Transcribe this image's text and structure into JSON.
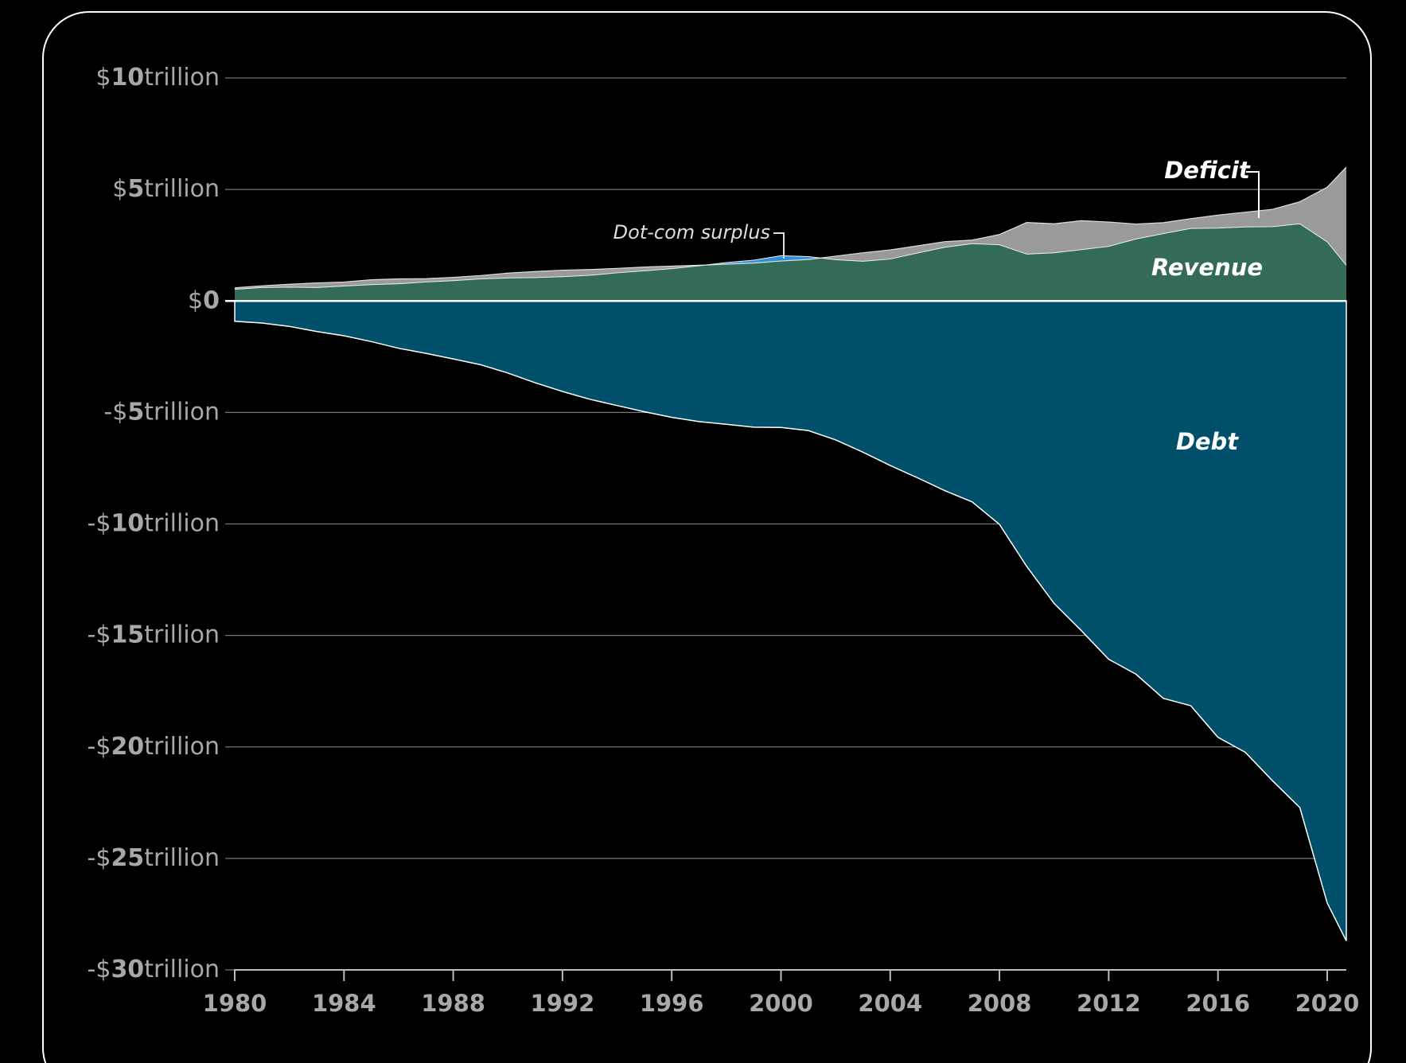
{
  "chart_data": {
    "type": "area",
    "x": [
      1980,
      1981,
      1982,
      1983,
      1984,
      1985,
      1986,
      1987,
      1988,
      1989,
      1990,
      1991,
      1992,
      1993,
      1994,
      1995,
      1996,
      1997,
      1998,
      1999,
      2000,
      2001,
      2002,
      2003,
      2004,
      2005,
      2006,
      2007,
      2008,
      2009,
      2010,
      2011,
      2012,
      2013,
      2014,
      2015,
      2016,
      2017,
      2018,
      2019,
      2020,
      2020.7
    ],
    "series": [
      {
        "name": "Revenue",
        "color": "#336b57",
        "values": [
          0.52,
          0.6,
          0.62,
          0.6,
          0.67,
          0.73,
          0.77,
          0.85,
          0.91,
          0.99,
          1.03,
          1.05,
          1.09,
          1.15,
          1.26,
          1.35,
          1.45,
          1.58,
          1.72,
          1.83,
          2.03,
          1.99,
          1.85,
          1.78,
          1.88,
          2.15,
          2.41,
          2.57,
          2.52,
          2.1,
          2.16,
          2.3,
          2.45,
          2.78,
          3.02,
          3.25,
          3.27,
          3.32,
          3.33,
          3.46,
          2.65,
          1.6
        ]
      },
      {
        "name": "Deficit",
        "color": "#9a9a9a",
        "surplus_color": "#2f8fd8",
        "values": [
          0.07,
          0.08,
          0.13,
          0.21,
          0.18,
          0.22,
          0.22,
          0.15,
          0.15,
          0.15,
          0.22,
          0.27,
          0.29,
          0.26,
          0.2,
          0.17,
          0.11,
          0.02,
          -0.07,
          -0.13,
          -0.24,
          -0.13,
          0.16,
          0.38,
          0.41,
          0.32,
          0.25,
          0.16,
          0.46,
          1.42,
          1.3,
          1.3,
          1.09,
          0.67,
          0.49,
          0.44,
          0.58,
          0.66,
          0.78,
          0.99,
          2.45,
          4.4
        ]
      },
      {
        "name": "Debt",
        "color": "#00506b",
        "values": [
          -0.91,
          -0.99,
          -1.14,
          -1.37,
          -1.56,
          -1.82,
          -2.12,
          -2.35,
          -2.6,
          -2.86,
          -3.23,
          -3.67,
          -4.06,
          -4.41,
          -4.69,
          -4.97,
          -5.22,
          -5.41,
          -5.53,
          -5.66,
          -5.67,
          -5.81,
          -6.23,
          -6.78,
          -7.38,
          -7.93,
          -8.51,
          -9.01,
          -10.02,
          -11.91,
          -13.56,
          -14.79,
          -16.07,
          -16.74,
          -17.82,
          -18.15,
          -19.57,
          -20.24,
          -21.52,
          -22.72,
          -27.0,
          -28.7
        ]
      }
    ],
    "annotations": [
      "Dot-com surplus"
    ],
    "xlim": [
      1980,
      2020.7
    ],
    "xticks": [
      1980,
      1984,
      1988,
      1992,
      1996,
      2000,
      2004,
      2008,
      2012,
      2016,
      2020
    ],
    "ylim": [
      -30,
      10
    ],
    "yticks": [
      {
        "value": 10,
        "label": "$10trillion"
      },
      {
        "value": 5,
        "label": "$5trillion"
      },
      {
        "value": 0,
        "label": "$0"
      },
      {
        "value": -5,
        "label": "-$5trillion"
      },
      {
        "value": -10,
        "label": "-$10trillion"
      },
      {
        "value": -15,
        "label": "-$15trillion"
      },
      {
        "value": -20,
        "label": "-$20trillion"
      },
      {
        "value": -25,
        "label": "-$25trillion"
      },
      {
        "value": -30,
        "label": "-$30trillion"
      }
    ],
    "grid": true
  }
}
